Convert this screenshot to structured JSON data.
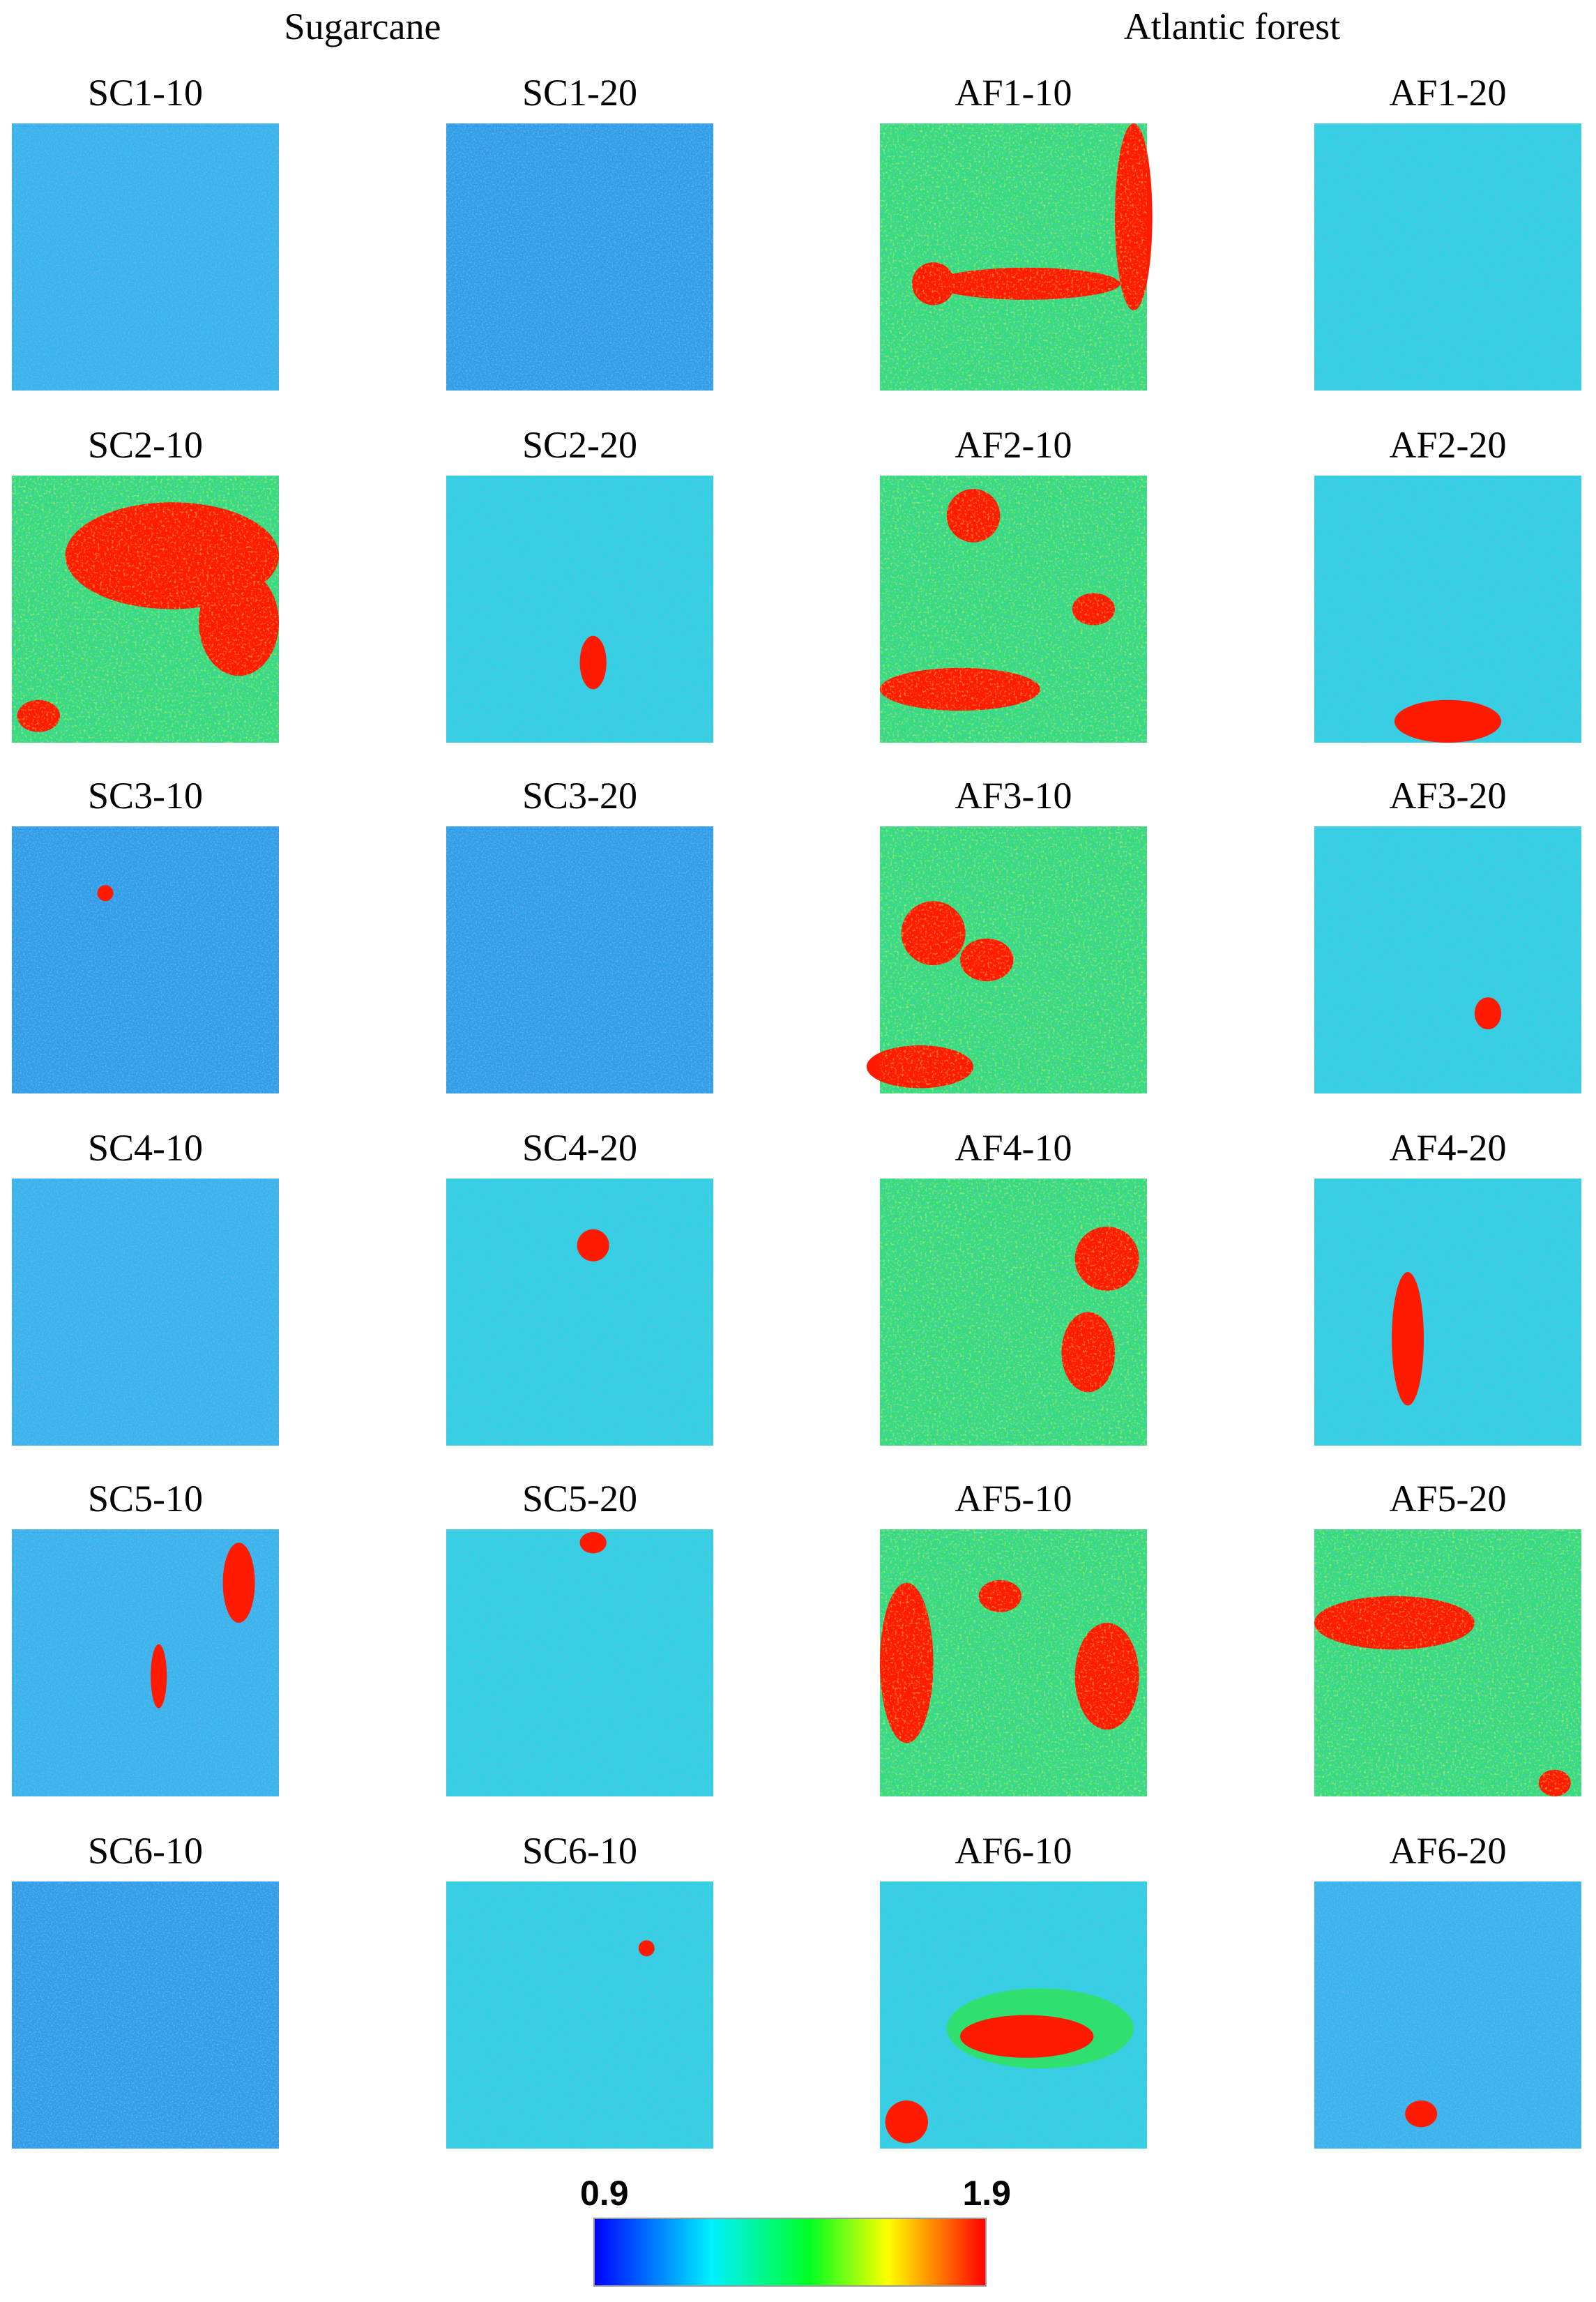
{
  "groups": [
    {
      "title": "Sugarcane"
    },
    {
      "title": "Atlantic forest"
    }
  ],
  "panels": [
    [
      "SC1-10",
      "SC1-20",
      "AF1-10",
      "AF1-20"
    ],
    [
      "SC2-10",
      "SC2-20",
      "AF2-10",
      "AF2-20"
    ],
    [
      "SC3-10",
      "SC3-20",
      "AF3-10",
      "AF3-20"
    ],
    [
      "SC4-10",
      "SC4-20",
      "AF4-10",
      "AF4-20"
    ],
    [
      "SC5-10",
      "SC5-20",
      "AF5-10",
      "AF5-20"
    ],
    [
      "SC6-10",
      "SC6-10",
      "AF6-10",
      "AF6-20"
    ]
  ],
  "colorbar": {
    "min": 0.9,
    "max": 1.9
  }
}
